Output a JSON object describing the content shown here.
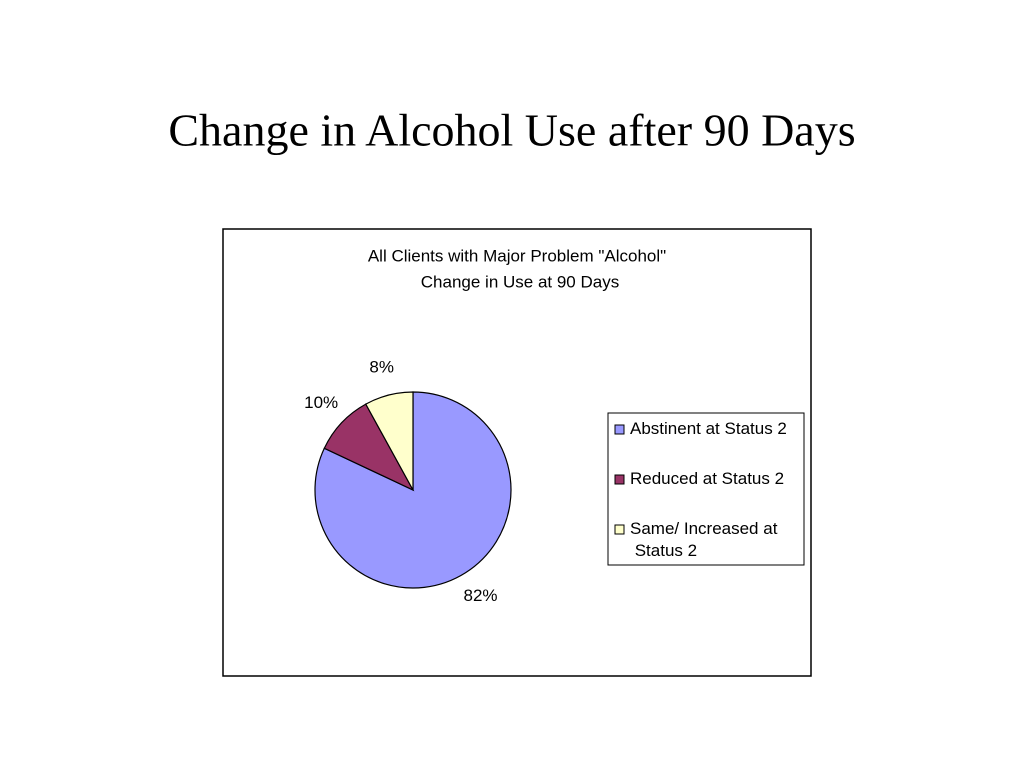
{
  "slide_title": "Change in Alcohol Use after 90 Days",
  "chart_data": {
    "type": "pie",
    "title": "All Clients with Major Problem \"Alcohol\"",
    "subtitle": "Change in Use at 90 Days",
    "categories": [
      "Abstinent at Status 2",
      "Reduced at Status 2",
      "Same/ Increased at Status 2"
    ],
    "values": [
      82,
      10,
      8
    ],
    "value_labels": [
      "82%",
      "10%",
      "8%"
    ],
    "colors": [
      "#9999ff",
      "#993366",
      "#ffffcc"
    ],
    "legend": "right"
  }
}
